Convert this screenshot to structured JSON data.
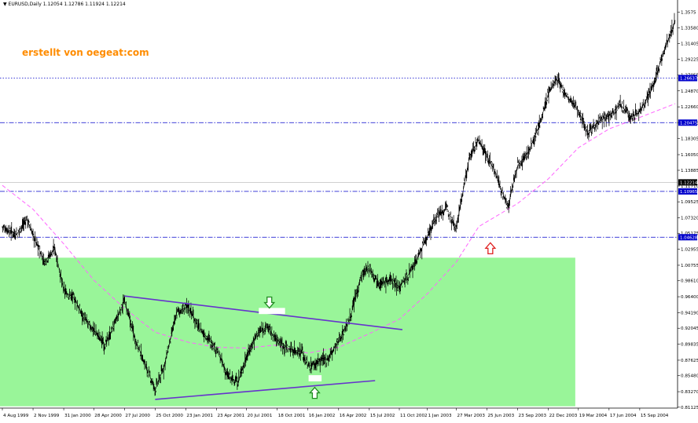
{
  "header": {
    "symbol": "EURUSD,Daily",
    "ohlc": "1.12054 1.12786 1.11924 1.12214"
  },
  "watermark": "erstellt von oegeat:com",
  "colors": {
    "background": "#ffffff",
    "highlight_zone": "#99f599",
    "price_bars": "#000000",
    "moving_average": "#ff66ff",
    "level_lines": "#0000cc",
    "trendlines": "#6633cc",
    "buy_arrows": "#228b22",
    "sell_arrow": "#e02020"
  },
  "chart_data": {
    "type": "line",
    "series": [
      {
        "id": "price",
        "style": "ohlc-bars",
        "x": [
          "1999-08-04",
          "1999-09-15",
          "1999-10-15",
          "1999-11-02",
          "1999-12-05",
          "2000-01-05",
          "2000-01-31",
          "2000-03-01",
          "2000-04-01",
          "2000-04-28",
          "2000-06-01",
          "2000-07-27",
          "2000-08-28",
          "2000-10-25",
          "2000-11-20",
          "2000-12-28",
          "2001-01-31",
          "2001-03-01",
          "2001-04-23",
          "2001-05-25",
          "2001-06-25",
          "2001-07-20",
          "2001-08-20",
          "2001-09-20",
          "2001-10-10",
          "2001-11-20",
          "2001-12-30",
          "2002-01-16",
          "2002-02-15",
          "2002-03-15",
          "2002-04-16",
          "2002-05-20",
          "2002-06-20",
          "2002-07-15",
          "2002-08-15",
          "2002-09-20",
          "2002-10-11",
          "2002-11-20",
          "2003-01-01",
          "2003-02-01",
          "2003-03-01",
          "2003-03-27",
          "2003-05-05",
          "2003-06-01",
          "2003-07-15",
          "2003-08-25",
          "2003-09-23",
          "2003-10-25",
          "2003-11-25",
          "2003-12-22",
          "2004-01-15",
          "2004-02-15",
          "2004-03-19",
          "2004-04-15",
          "2004-05-15",
          "2004-06-17",
          "2004-07-20",
          "2004-08-20",
          "2004-09-15",
          "2004-10-20",
          "2004-11-20",
          "2004-12-28"
        ],
        "y": [
          1.061,
          1.05,
          1.072,
          1.049,
          1.012,
          1.031,
          0.972,
          0.962,
          0.933,
          0.918,
          0.897,
          0.958,
          0.905,
          0.835,
          0.867,
          0.943,
          0.951,
          0.922,
          0.892,
          0.854,
          0.846,
          0.882,
          0.913,
          0.923,
          0.908,
          0.892,
          0.888,
          0.867,
          0.874,
          0.878,
          0.903,
          0.934,
          0.992,
          1.004,
          0.982,
          0.988,
          0.977,
          1.003,
          1.048,
          1.079,
          1.085,
          1.06,
          1.158,
          1.181,
          1.14,
          1.088,
          1.145,
          1.165,
          1.2,
          1.245,
          1.265,
          1.24,
          1.222,
          1.192,
          1.205,
          1.215,
          1.23,
          1.212,
          1.22,
          1.25,
          1.296,
          1.346
        ]
      },
      {
        "id": "moving_average",
        "style": "dashed",
        "x": [
          "1999-08-04",
          "1999-11-02",
          "2000-01-31",
          "2000-04-28",
          "2000-07-27",
          "2000-10-25",
          "2001-01-31",
          "2001-04-23",
          "2001-07-20",
          "2001-10-10",
          "2002-01-16",
          "2002-04-16",
          "2002-07-15",
          "2002-10-11",
          "2003-01-01",
          "2003-03-27",
          "2003-06-01",
          "2003-09-23",
          "2003-12-22",
          "2004-03-19",
          "2004-06-17",
          "2004-09-15",
          "2004-12-28"
        ],
        "y": [
          1.118,
          1.085,
          1.037,
          0.987,
          0.948,
          0.915,
          0.901,
          0.894,
          0.893,
          0.897,
          0.886,
          0.894,
          0.913,
          0.933,
          0.968,
          1.012,
          1.061,
          1.093,
          1.127,
          1.17,
          1.196,
          1.212,
          1.231
        ]
      }
    ],
    "levels": [
      {
        "price": 1.26637,
        "label": "1.26637",
        "style": "dotted"
      },
      {
        "price": 1.20475,
        "label": "1.20475",
        "style": "dash-dot"
      },
      {
        "price": 1.10965,
        "label": "1.10965",
        "style": "dash-dot"
      },
      {
        "price": 1.04628,
        "label": "1.04628",
        "style": "dash-dot"
      }
    ],
    "current_price": {
      "price": 1.12214,
      "label": "1.12214"
    },
    "trendlines": [
      {
        "from": {
          "x": "2000-07-27",
          "y": 0.965
        },
        "to": {
          "x": "2002-10-20",
          "y": 0.9185
        }
      },
      {
        "from": {
          "x": "2000-10-25",
          "y": 0.822
        },
        "to": {
          "x": "2002-08-01",
          "y": 0.848
        }
      }
    ],
    "highlight_zone": {
      "x_from": "1999-08-04",
      "x_to": "2004-03-10",
      "y_from": 0.8125,
      "y_to": 1.018
    },
    "annotation_boxes": [
      {
        "x_from": "2001-08-25",
        "x_to": "2001-11-10",
        "y_from": 0.94,
        "y_to": 0.9485
      },
      {
        "x_from": "2002-01-18",
        "x_to": "2002-02-25",
        "y_from": 0.847,
        "y_to": 0.8555
      }
    ],
    "arrows": [
      {
        "x": "2001-09-25",
        "y": 0.956,
        "direction": "down",
        "color": "buy_arrows"
      },
      {
        "x": "2002-02-05",
        "y": 0.831,
        "direction": "up",
        "color": "buy_arrows"
      },
      {
        "x": "2003-07-05",
        "y": 1.031,
        "direction": "up",
        "color": "sell_arrow"
      }
    ],
    "x_axis": {
      "ticks": [
        {
          "x": "1999-08-04",
          "label": "4 Aug 1999"
        },
        {
          "x": "1999-11-02",
          "label": "2 Nov 1999"
        },
        {
          "x": "2000-01-31",
          "label": "31 Jan 2000"
        },
        {
          "x": "2000-04-28",
          "label": "28 Apr 2000"
        },
        {
          "x": "2000-07-27",
          "label": "27 Jul 2000"
        },
        {
          "x": "2000-10-25",
          "label": "25 Oct 2000"
        },
        {
          "x": "2001-01-23",
          "label": "23 Jan 2001"
        },
        {
          "x": "2001-04-23",
          "label": "23 Apr 2001"
        },
        {
          "x": "2001-07-20",
          "label": "20 Jul 2001"
        },
        {
          "x": "2001-10-18",
          "label": "18 Oct 2001"
        },
        {
          "x": "2002-01-16",
          "label": "16 Jan 2002"
        },
        {
          "x": "2002-04-16",
          "label": "16 Apr 2002"
        },
        {
          "x": "2002-07-15",
          "label": "15 Jul 2002"
        },
        {
          "x": "2002-10-11",
          "label": "11 Oct 2002"
        },
        {
          "x": "2003-01-01",
          "label": "1 Jan 2003"
        },
        {
          "x": "2003-03-27",
          "label": "27 Mar 2003"
        },
        {
          "x": "2003-06-25",
          "label": "25 Jun 2003"
        },
        {
          "x": "2003-09-23",
          "label": "23 Sep 2003"
        },
        {
          "x": "2003-12-22",
          "label": "22 Dec 2003"
        },
        {
          "x": "2004-03-19",
          "label": "19 Mar 2004"
        },
        {
          "x": "2004-06-17",
          "label": "17 Jun 2004"
        },
        {
          "x": "2004-09-15",
          "label": "15 Sep 2004"
        }
      ]
    },
    "y_axis": {
      "ylim": [
        0.81,
        1.37
      ],
      "ticks": [
        1.3575,
        1.3358,
        1.31405,
        1.29225,
        1.27055,
        1.2487,
        1.2266,
        1.20475,
        1.18305,
        1.1605,
        1.13885,
        1.1171,
        1.09525,
        1.0732,
        1.05175,
        1.02955,
        1.00755,
        0.9861,
        0.964,
        0.9419,
        0.92045,
        0.89835,
        0.87625,
        0.8548,
        0.8327,
        0.81125
      ],
      "tick_labels": [
        "1.3575",
        "1.33580",
        "1.31405",
        "1.29225",
        "1.27055",
        "1.24870",
        "1.22660",
        "1.20475",
        "1.18305",
        "1.16050",
        "1.13885",
        "1.11710",
        "1.09525",
        "1.07320",
        "1.05175",
        "1.02955",
        "1.00755",
        "0.98610",
        "0.96400",
        "0.94190",
        "0.92045",
        "0.89835",
        "0.87625",
        "0.85480",
        "0.83270",
        "0.81125"
      ]
    }
  }
}
